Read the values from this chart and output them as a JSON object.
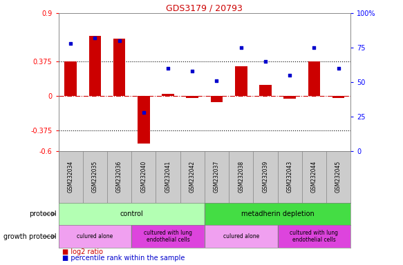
{
  "title": "GDS3179 / 20793",
  "samples": [
    "GSM232034",
    "GSM232035",
    "GSM232036",
    "GSM232040",
    "GSM232041",
    "GSM232042",
    "GSM232037",
    "GSM232038",
    "GSM232039",
    "GSM232043",
    "GSM232044",
    "GSM232045"
  ],
  "log2_ratio": [
    0.375,
    0.65,
    0.62,
    -0.52,
    0.02,
    -0.02,
    -0.07,
    0.32,
    0.12,
    -0.03,
    0.375,
    -0.02
  ],
  "percentile": [
    78,
    82,
    80,
    28,
    60,
    58,
    51,
    75,
    65,
    55,
    75,
    60
  ],
  "ylim_left": [
    -0.6,
    0.9
  ],
  "ylim_right": [
    0,
    100
  ],
  "yticks_left": [
    -0.6,
    -0.375,
    0,
    0.375,
    0.9
  ],
  "yticks_right": [
    0,
    25,
    50,
    75,
    100
  ],
  "hlines": [
    0.375,
    -0.375
  ],
  "bar_color": "#cc0000",
  "dot_color": "#0000cc",
  "zeroline_color": "#cc0000",
  "protocol_row": [
    {
      "label": "control",
      "start": 0,
      "end": 6,
      "color": "#b3ffb3"
    },
    {
      "label": "metadherin depletion",
      "start": 6,
      "end": 12,
      "color": "#44dd44"
    }
  ],
  "growth_row": [
    {
      "label": "culured alone",
      "start": 0,
      "end": 3,
      "color": "#f0a0f0"
    },
    {
      "label": "cultured with lung\nendothelial cells",
      "start": 3,
      "end": 6,
      "color": "#dd44dd"
    },
    {
      "label": "culured alone",
      "start": 6,
      "end": 9,
      "color": "#f0a0f0"
    },
    {
      "label": "cultured with lung\nendothelial cells",
      "start": 9,
      "end": 12,
      "color": "#dd44dd"
    }
  ],
  "protocol_label": "protocol",
  "growth_label": "growth protocol",
  "legend_log2": "log2 ratio",
  "legend_pct": "percentile rank within the sample",
  "sample_bg": "#cccccc",
  "plot_bg": "#ffffff",
  "title_color": "#cc0000"
}
